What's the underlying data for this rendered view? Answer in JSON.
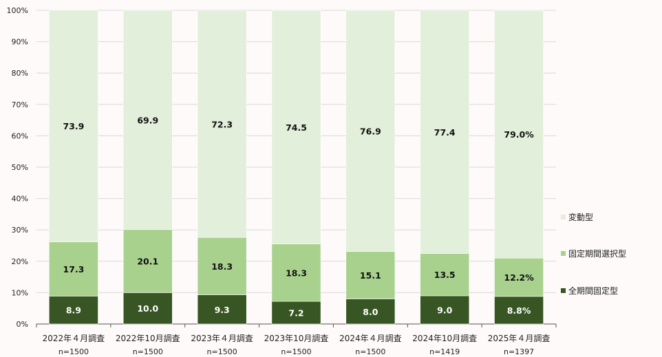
{
  "chart_data": {
    "type": "bar",
    "stacked": true,
    "categories": [
      "2022年４月調査",
      "2022年10月調査",
      "2023年４月調査",
      "2023年10月調査",
      "2024年４月調査",
      "2024年10月調査",
      "2025年４月調査"
    ],
    "sample_sizes": [
      "n=1500",
      "n=1500",
      "n=1500",
      "n=1500",
      "n=1500",
      "n=1419",
      "n=1397"
    ],
    "ylim": [
      0,
      100
    ],
    "yticks": [
      "0%",
      "10%",
      "20%",
      "30%",
      "40%",
      "50%",
      "60%",
      "70%",
      "80%",
      "90%",
      "100%"
    ],
    "legend_position": "right",
    "series": [
      {
        "name": "全期間固定型",
        "color": "#375623",
        "label_color": "#ffffff",
        "values": [
          8.9,
          10.0,
          9.3,
          7.2,
          8.0,
          9.0,
          8.8
        ],
        "labels": [
          "8.9",
          "10.0",
          "9.3",
          "7.2",
          "8.0",
          "9.0",
          "8.8%"
        ]
      },
      {
        "name": "固定期間選択型",
        "color": "#a9d18e",
        "label_color": "#111111",
        "values": [
          17.3,
          20.1,
          18.3,
          18.3,
          15.1,
          13.5,
          12.2
        ],
        "labels": [
          "17.3",
          "20.1",
          "18.3",
          "18.3",
          "15.1",
          "13.5",
          "12.2%"
        ]
      },
      {
        "name": "変動型",
        "color": "#e2efda",
        "label_color": "#111111",
        "values": [
          73.9,
          69.9,
          72.3,
          74.5,
          76.9,
          77.4,
          79.0
        ],
        "labels": [
          "73.9",
          "69.9",
          "72.3",
          "74.5",
          "76.9",
          "77.4",
          "79.0%"
        ]
      }
    ],
    "legend_order": [
      "変動型",
      "固定期間選択型",
      "全期間固定型"
    ]
  }
}
